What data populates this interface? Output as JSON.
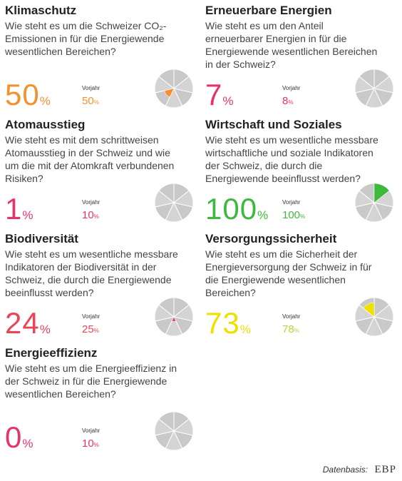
{
  "panels": [
    {
      "title": "Klimaschutz",
      "question": "Wie steht es um die Schweizer CO₂-Emissionen in für die Energiewende wesentlichen Bereichen?",
      "value": 50,
      "unit": "%",
      "prev_label": "Vorjahr",
      "prev_value": 50,
      "color": "#f39130",
      "prev_color": "#f39130"
    },
    {
      "title": "Erneuerbare Energien",
      "question": "Wie steht es um den Anteil erneuerbarer Energien in für die Energiewende wesentlichen Bereichen in der Schweiz?",
      "value": 7,
      "unit": "%",
      "prev_label": "Vorjahr",
      "prev_value": 8,
      "color": "#e6336e",
      "prev_color": "#e6336e"
    },
    {
      "title": "Atomausstieg",
      "question": "Wie steht es mit dem schrittweisen Atomausstieg in der Schweiz und wie um die mit der Atomkraft verbundenen Risiken?",
      "value": 1,
      "unit": "%",
      "prev_label": "Vorjahr",
      "prev_value": 10,
      "color": "#e6336e",
      "prev_color": "#e6336e"
    },
    {
      "title": "Wirtschaft und Soziales",
      "question": "Wie steht es um wesentliche messbare wirtschaftliche und soziale Indikatoren der Schweiz, die durch die Energiewende beeinflusst werden?",
      "value": 100,
      "unit": "%",
      "prev_label": "Vorjahr",
      "prev_value": 100,
      "color": "#3dba3d",
      "prev_color": "#3dba3d"
    },
    {
      "title": "Biodiversität",
      "question": "Wie steht es um wesentliche messbare Indikatoren der Biodiversität in der Schweiz, die durch die Energiewende beeinflusst werden?",
      "value": 24,
      "unit": "%",
      "prev_label": "Vorjahr",
      "prev_value": 25,
      "color": "#e8445a",
      "prev_color": "#e8445a"
    },
    {
      "title": "Versorgungssicherheit",
      "question": "Wie steht es um die Sicherheit der Energieversorgung der Schweiz in für die Energiewende wesentlichen Bereichen?",
      "value": 73,
      "unit": "%",
      "prev_label": "Vorjahr",
      "prev_value": 78,
      "color": "#efe000",
      "prev_color": "#b5d43a"
    },
    {
      "title": "Energieeffizienz",
      "question": "Wie steht es um die Energieeffizienz in der Schweiz in für die Energiewende wesentlichen Bereichen?",
      "value": 0,
      "unit": "%",
      "prev_label": "Vorjahr",
      "prev_value": 10,
      "color": "#e6336e",
      "prev_color": "#e6336e"
    }
  ],
  "footer": {
    "source_label": "Datenbasis:",
    "logo": "EBP"
  }
}
